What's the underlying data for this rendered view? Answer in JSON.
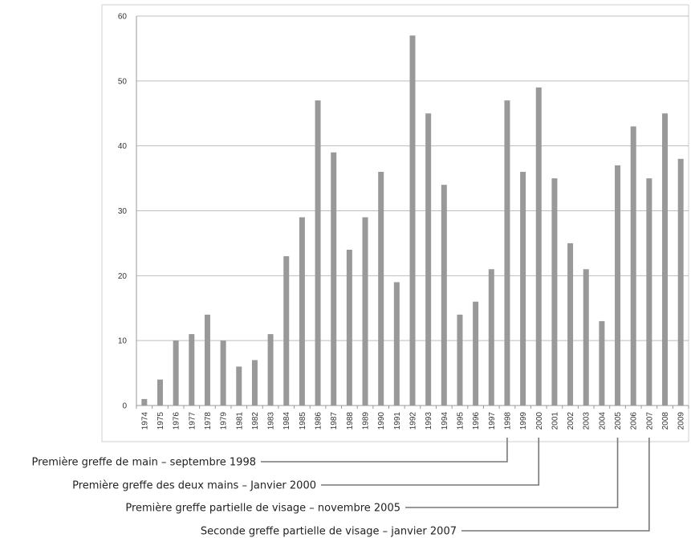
{
  "chart_data": {
    "type": "bar",
    "categories": [
      "1974",
      "1975",
      "1976",
      "1977",
      "1978",
      "1979",
      "1981",
      "1982",
      "1983",
      "1984",
      "1985",
      "1986",
      "1987",
      "1988",
      "1989",
      "1990",
      "1991",
      "1992",
      "1993",
      "1994",
      "1995",
      "1996",
      "1997",
      "1998",
      "1999",
      "2000",
      "2001",
      "2002",
      "2003",
      "2004",
      "2005",
      "2006",
      "2007",
      "2008",
      "2009"
    ],
    "values": [
      1,
      4,
      10,
      11,
      14,
      10,
      6,
      7,
      11,
      23,
      29,
      47,
      39,
      24,
      29,
      36,
      19,
      57,
      45,
      34,
      14,
      16,
      21,
      47,
      36,
      49,
      35,
      25,
      21,
      13,
      37,
      43,
      35,
      45,
      38
    ],
    "ylim": [
      0,
      60
    ],
    "yticks": [
      0,
      10,
      20,
      30,
      40,
      50,
      60
    ],
    "grid": true,
    "bar_color": "#999999",
    "annotations": [
      {
        "text": "Première greffe de main – septembre 1998",
        "category": "1998"
      },
      {
        "text": "Première greffe des deux mains – Janvier 2000",
        "category": "2000"
      },
      {
        "text": "Première greffe partielle de visage – novembre 2005",
        "category": "2005"
      },
      {
        "text": "Seconde greffe partielle de visage – janvier 2007",
        "category": "2007"
      }
    ]
  }
}
